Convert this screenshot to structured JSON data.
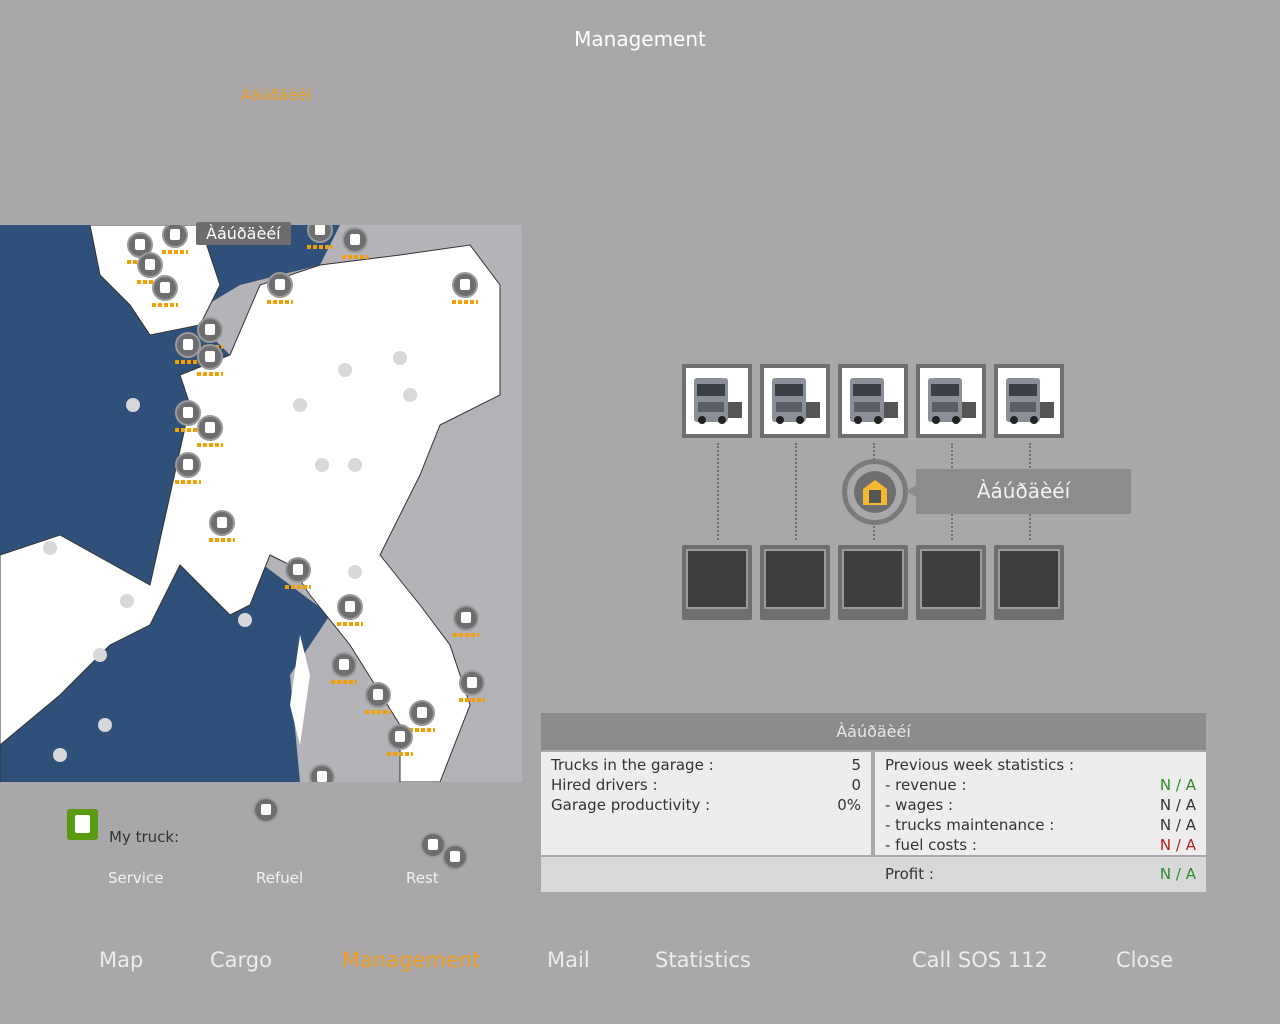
{
  "header": {
    "title": "Management",
    "subtitle": "Àáúðäèéí"
  },
  "map": {
    "tooltip": "Àáúðäèéí",
    "my_truck_label": "My truck:",
    "actions": [
      "Service",
      "Refuel",
      "Rest"
    ]
  },
  "garage": {
    "label": "Àáúðäèéí",
    "trucks": 5,
    "driver_slots": 5,
    "accent": "#f5b830"
  },
  "panel": {
    "title": "Àáúðäèéí",
    "left": [
      {
        "label": "Trucks in the garage :",
        "value": "5"
      },
      {
        "label": "Hired drivers :",
        "value": "0"
      },
      {
        "label": "Garage productivity :",
        "value": "0%"
      }
    ],
    "right_title": "Previous week statistics :",
    "right": [
      {
        "label": "- revenue :",
        "value": "N / A",
        "color": "green"
      },
      {
        "label": "- wages :",
        "value": "N / A",
        "color": "neutral"
      },
      {
        "label": "- trucks maintenance :",
        "value": "N / A",
        "color": "neutral"
      },
      {
        "label": "- fuel costs :",
        "value": "N / A",
        "color": "red"
      }
    ],
    "profit_label": "Profit :",
    "profit_value": "N / A"
  },
  "nav": {
    "map": "Map",
    "cargo": "Cargo",
    "management": "Management",
    "mail": "Mail",
    "statistics": "Statistics",
    "sos": "Call SOS 112",
    "close": "Close",
    "active": "Management",
    "active_color": "#f0a020"
  }
}
